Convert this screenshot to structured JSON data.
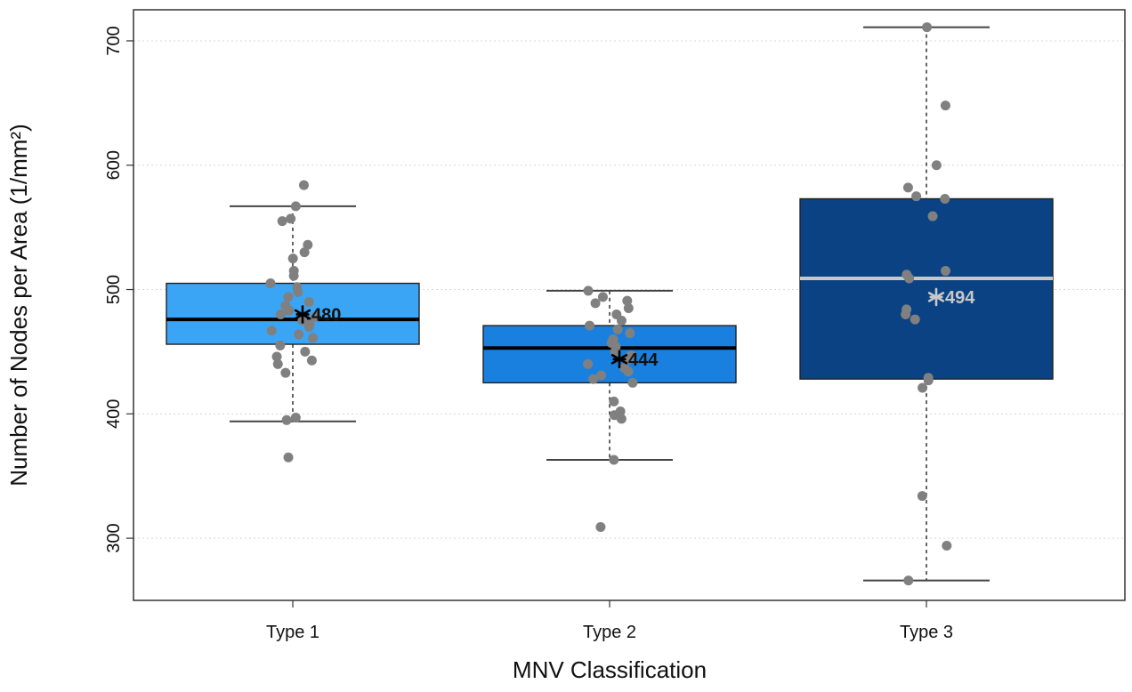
{
  "chart_data": {
    "type": "boxplot",
    "title": "",
    "xlabel": "MNV Classification",
    "ylabel": "Number of Nodes per Area (1/mm²)",
    "ylim": [
      250,
      725
    ],
    "yticks": [
      300,
      400,
      500,
      600,
      700
    ],
    "ytick_labels": [
      "300",
      "400",
      "500",
      "600",
      "700"
    ],
    "grid": "horizontal dotted",
    "categories": [
      "Type 1",
      "Type 2",
      "Type 3"
    ],
    "series": [
      {
        "name": "Type 1",
        "color": "#3aa5f5",
        "median_color": "#000000",
        "mean_color": "#000000",
        "whisker_low": 394,
        "q1": 456,
        "median": 476,
        "q3": 505,
        "whisker_high": 567,
        "mean": 480,
        "mean_label": "480",
        "points": [
          584,
          567,
          557,
          555,
          536,
          530,
          525,
          515,
          511,
          505,
          502,
          498,
          494,
          490,
          487,
          483,
          480,
          478,
          475,
          472,
          470,
          467,
          464,
          461,
          455,
          450,
          446,
          443,
          440,
          433,
          397,
          395,
          365
        ]
      },
      {
        "name": "Type 2",
        "color": "#1a80e0",
        "median_color": "#000000",
        "mean_color": "#000000",
        "whisker_low": 363,
        "q1": 425,
        "median": 453,
        "q3": 471,
        "whisker_high": 499,
        "mean": 444,
        "mean_label": "444",
        "points": [
          499,
          494,
          491,
          489,
          485,
          480,
          475,
          471,
          468,
          465,
          460,
          457,
          454,
          450,
          447,
          444,
          440,
          437,
          434,
          431,
          428,
          425,
          410,
          402,
          399,
          396,
          363,
          309
        ]
      },
      {
        "name": "Type 3",
        "color": "#0a4284",
        "median_color": "#c8c8c8",
        "mean_color": "#c8c8c8",
        "whisker_low": 266,
        "q1": 428,
        "median": 509,
        "q3": 573,
        "whisker_high": 711,
        "mean": 494,
        "mean_label": "494",
        "points": [
          711,
          648,
          600,
          582,
          575,
          573,
          559,
          515,
          512,
          509,
          484,
          480,
          476,
          429,
          427,
          421,
          334,
          294,
          266
        ]
      }
    ]
  }
}
